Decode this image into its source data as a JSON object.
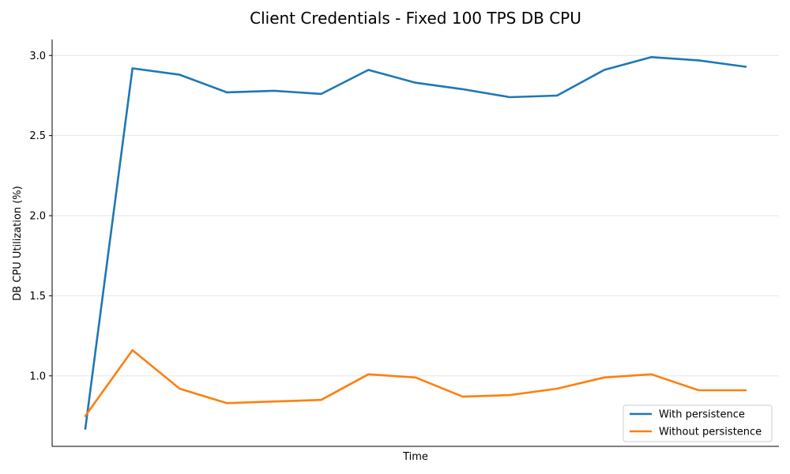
{
  "chart_data": {
    "type": "line",
    "title": "Client Credentials - Fixed 100 TPS DB CPU",
    "xlabel": "Time",
    "ylabel": "DB CPU Utilization (%)",
    "x_ticks_shown": false,
    "ylim": [
      0.56,
      3.1
    ],
    "yticks": [
      1.0,
      1.5,
      2.0,
      2.5,
      3.0
    ],
    "ytick_labels": [
      "1.0",
      "1.5",
      "2.0",
      "2.5",
      "3.0"
    ],
    "grid": "horizontal",
    "legend_position": "bottom-right",
    "series": [
      {
        "name": "With persistence",
        "color": "#1f77b4",
        "values": [
          0.67,
          2.92,
          2.88,
          2.77,
          2.78,
          2.76,
          2.91,
          2.83,
          2.79,
          2.74,
          2.75,
          2.91,
          2.99,
          2.97,
          2.93
        ]
      },
      {
        "name": "Without persistence",
        "color": "#ff7f0e",
        "values": [
          0.75,
          1.16,
          0.92,
          0.83,
          0.84,
          0.85,
          1.01,
          0.99,
          0.87,
          0.88,
          0.92,
          0.99,
          1.01,
          0.91,
          0.91
        ]
      }
    ]
  }
}
